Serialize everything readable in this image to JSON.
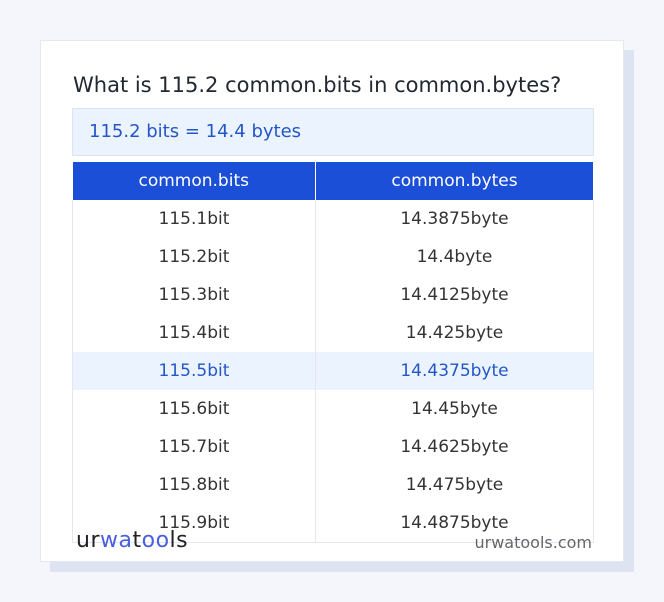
{
  "title": "What is 115.2 common.bits in common.bytes?",
  "result": "115.2 bits = 14.4 bytes",
  "table": {
    "headers": [
      "common.bits",
      "common.bytes"
    ],
    "rows": [
      [
        "115.1bit",
        "14.3875byte"
      ],
      [
        "115.2bit",
        "14.4byte"
      ],
      [
        "115.3bit",
        "14.4125byte"
      ],
      [
        "115.4bit",
        "14.425byte"
      ],
      [
        "115.5bit",
        "14.4375byte"
      ],
      [
        "115.6bit",
        "14.45byte"
      ],
      [
        "115.7bit",
        "14.4625byte"
      ],
      [
        "115.8bit",
        "14.475byte"
      ],
      [
        "115.9bit",
        "14.4875byte"
      ]
    ],
    "highlighted_row": 4
  },
  "footer": {
    "logo": "urwatools",
    "site": "urwatools.com"
  },
  "colors": {
    "accent": "#1b4fd8",
    "highlight_bg": "#ebf4fe"
  }
}
